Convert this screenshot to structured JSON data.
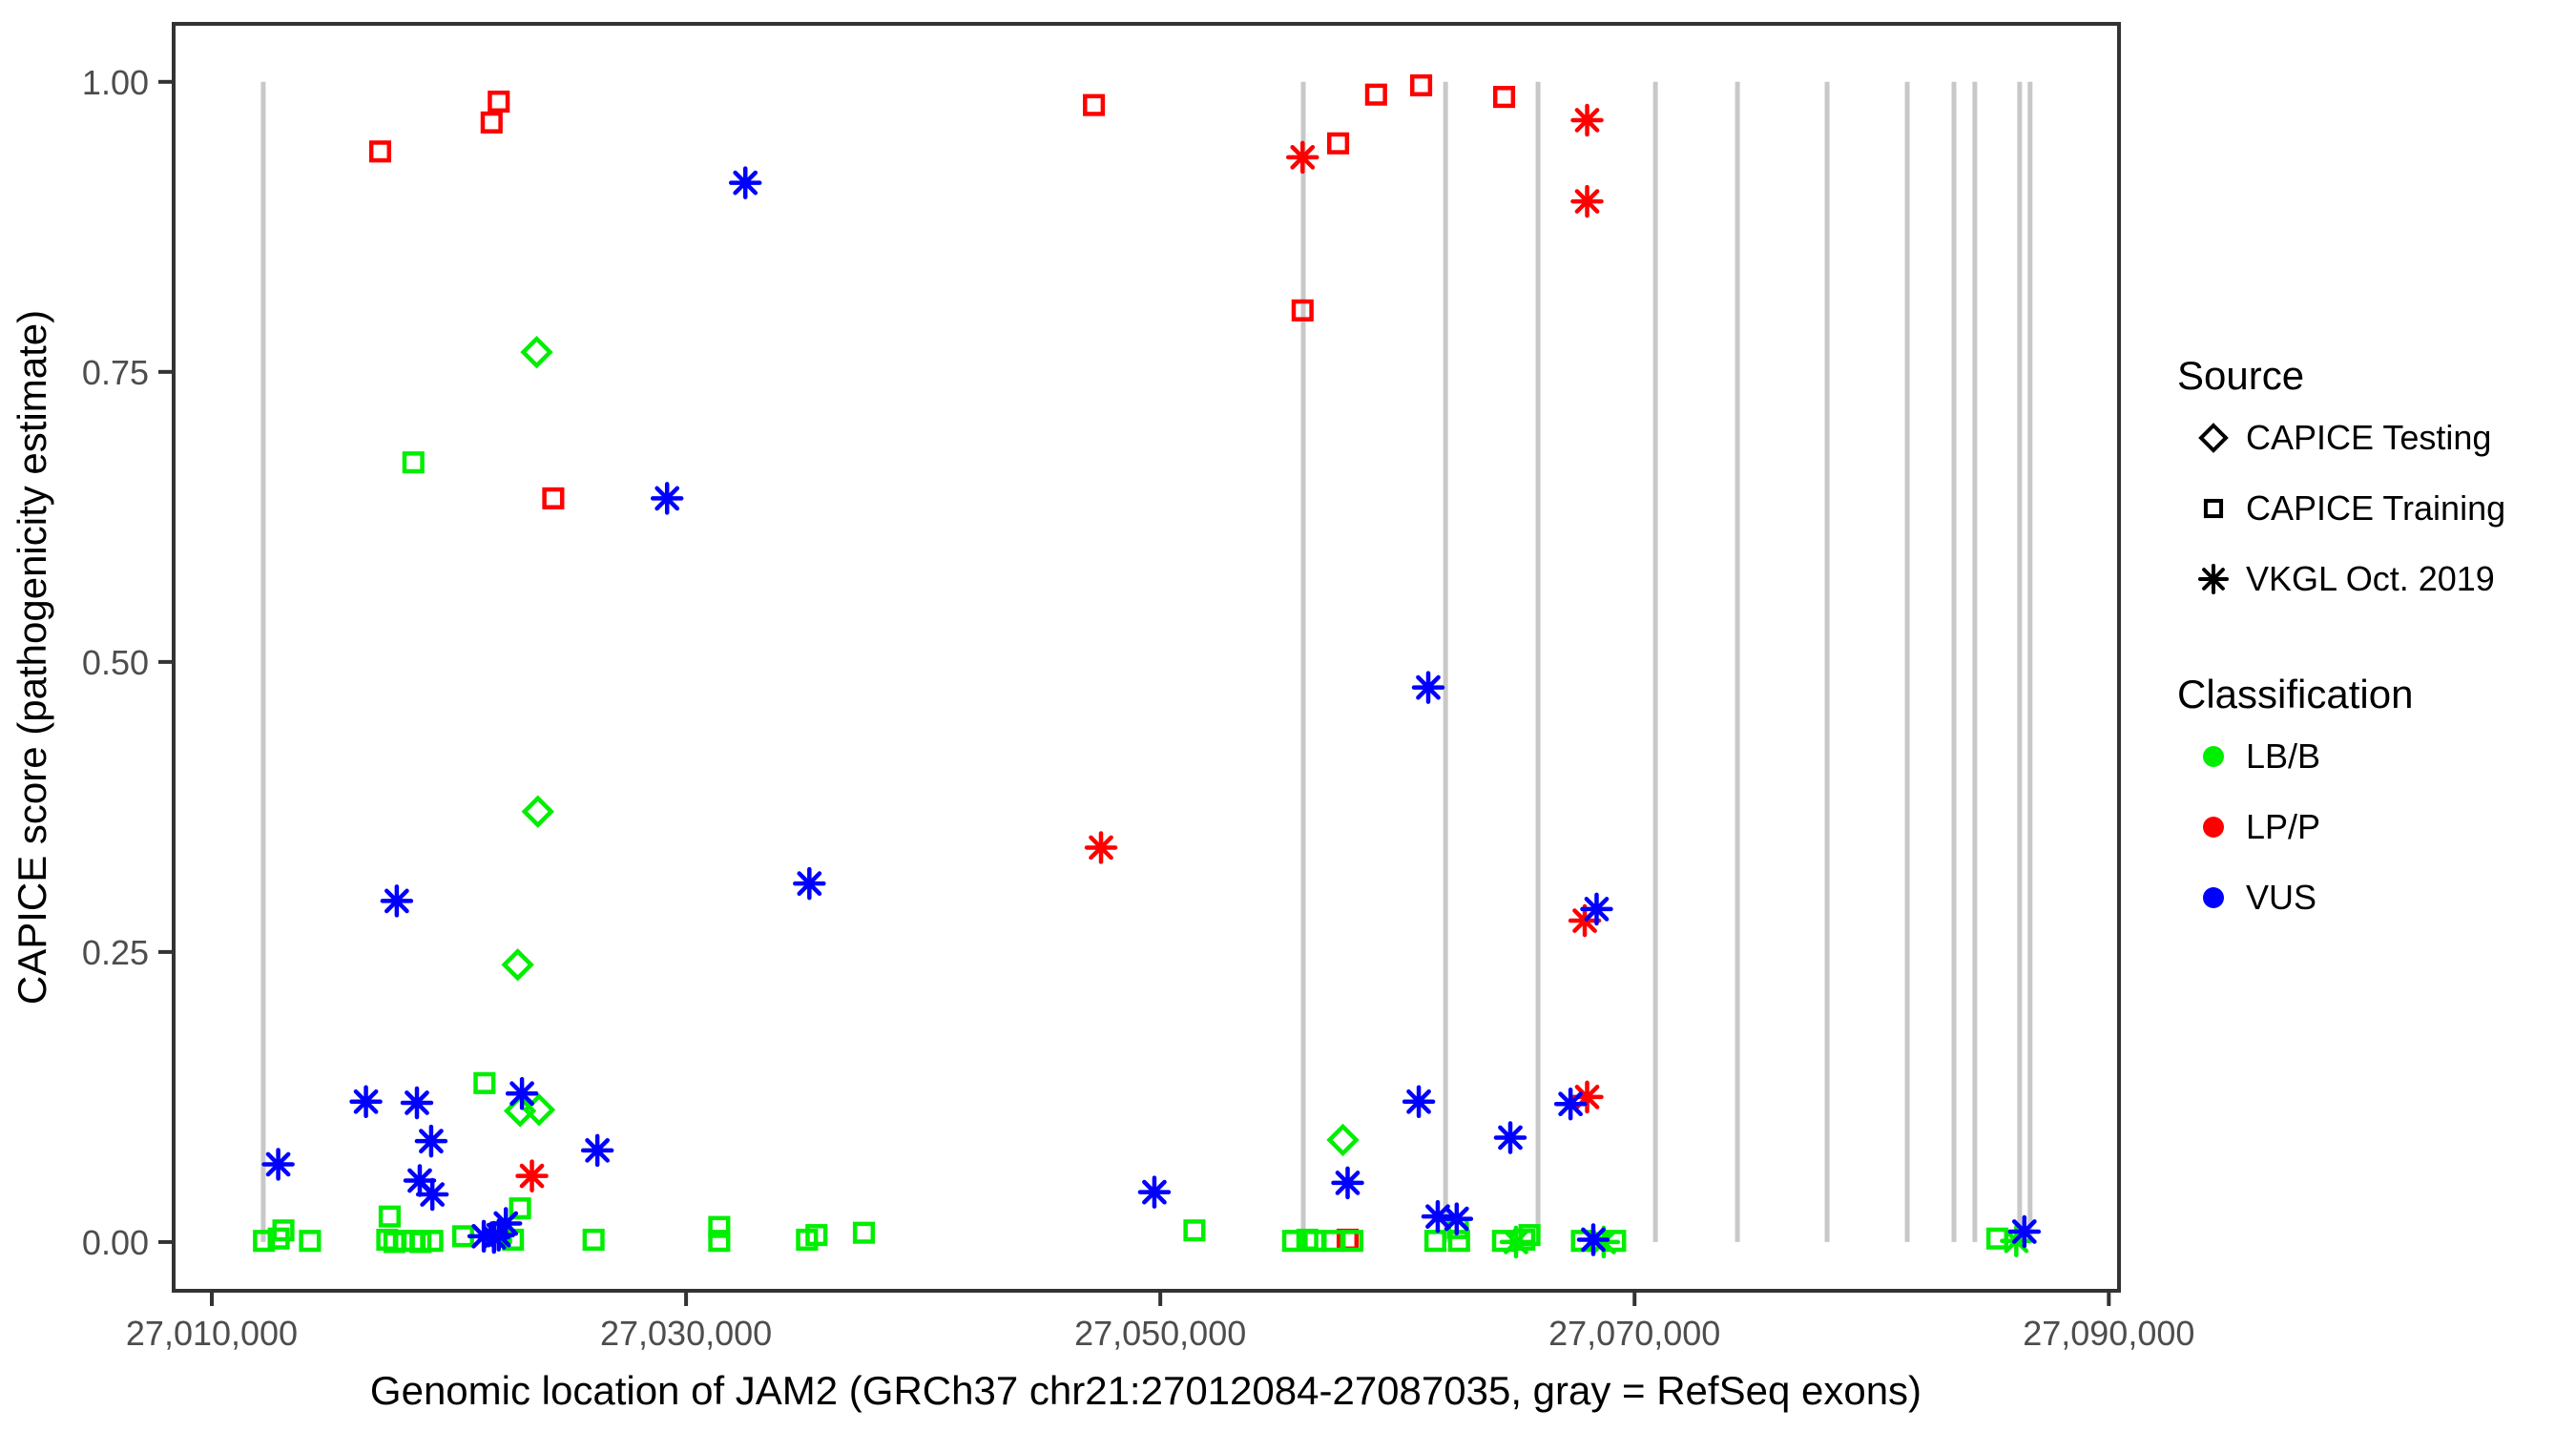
{
  "figure": {
    "x_title": "Genomic location of JAM2 (GRCh37 chr21:27012084-27087035, gray = RefSeq exons)",
    "y_title": "CAPICE score (pathogenicity estimate)"
  },
  "legend": {
    "source": {
      "title": "Source",
      "items": [
        {
          "label": "CAPICE Testing",
          "marker": "diamond"
        },
        {
          "label": "CAPICE Training",
          "marker": "square"
        },
        {
          "label": "VKGL Oct. 2019",
          "marker": "asterisk"
        }
      ]
    },
    "classification": {
      "title": "Classification",
      "items": [
        {
          "label": "LB/B",
          "color": "#00EE00"
        },
        {
          "label": "LP/P",
          "color": "#FF0000"
        },
        {
          "label": "VUS",
          "color": "#0000FF"
        }
      ]
    }
  },
  "chart_data": {
    "type": "scatter",
    "title": "",
    "xlabel": "Genomic location of JAM2 (GRCh37 chr21:27012084-27087035, gray = RefSeq exons)",
    "ylabel": "CAPICE score (pathogenicity estimate)",
    "xlim": [
      27008390,
      27090430
    ],
    "ylim": [
      -0.042,
      1.05
    ],
    "grid": false,
    "legend_position": "right",
    "x_ticks": [
      {
        "value": 27010000,
        "label": "27,010,000"
      },
      {
        "value": 27030000,
        "label": "27,030,000"
      },
      {
        "value": 27050000,
        "label": "27,050,000"
      },
      {
        "value": 27070000,
        "label": "27,070,000"
      },
      {
        "value": 27090000,
        "label": "27,090,000"
      }
    ],
    "y_ticks": [
      {
        "value": 0.0,
        "label": "0.00"
      },
      {
        "value": 0.25,
        "label": "0.25"
      },
      {
        "value": 0.5,
        "label": "0.50"
      },
      {
        "value": 0.75,
        "label": "0.75"
      },
      {
        "value": 1.0,
        "label": "1.00"
      }
    ],
    "marker_shapes": {
      "CAPICE Testing": "diamond",
      "CAPICE Training": "square",
      "VKGL Oct. 2019": "asterisk"
    },
    "class_colors": {
      "LB/B": "#00EE00",
      "LP/P": "#FF0000",
      "VUS": "#0000FF"
    },
    "exon_color": "#C8C8C8",
    "refseq_exons_x": [
      27012170,
      27056030,
      27062030,
      27065930,
      27070880,
      27074340,
      27078120,
      27081500,
      27083470,
      27084350,
      27086240,
      27086680
    ],
    "series": [
      {
        "name": "CAPICE Training - LP/P",
        "source": "CAPICE Training",
        "classification": "LP/P",
        "points": [
          [
            27022100,
            0.983
          ],
          [
            27021800,
            0.965
          ],
          [
            27017100,
            0.94
          ],
          [
            27024400,
            0.641
          ],
          [
            27047200,
            0.98
          ],
          [
            27056000,
            0.803
          ],
          [
            27057500,
            0.947
          ],
          [
            27059100,
            0.989
          ],
          [
            27061000,
            0.997
          ],
          [
            27064500,
            0.987
          ],
          [
            27057900,
            0.002
          ]
        ]
      },
      {
        "name": "VKGL Oct. 2019 - LP/P",
        "source": "VKGL Oct. 2019",
        "classification": "LP/P",
        "points": [
          [
            27056000,
            0.935
          ],
          [
            27068000,
            0.967
          ],
          [
            27068000,
            0.897
          ],
          [
            27047500,
            0.34
          ],
          [
            27023500,
            0.057
          ],
          [
            27067900,
            0.277
          ],
          [
            27068000,
            0.125
          ]
        ]
      },
      {
        "name": "CAPICE Testing - LB/B",
        "source": "CAPICE Testing",
        "classification": "LB/B",
        "points": [
          [
            27023700,
            0.767
          ],
          [
            27023750,
            0.371
          ],
          [
            27022900,
            0.239
          ],
          [
            27023000,
            0.113
          ],
          [
            27023800,
            0.114
          ],
          [
            27057700,
            0.088
          ]
        ]
      },
      {
        "name": "CAPICE Training - LB/B",
        "source": "CAPICE Training",
        "classification": "LB/B",
        "points": [
          [
            27018500,
            0.672
          ],
          [
            27021500,
            0.137
          ],
          [
            27012200,
            0.001
          ],
          [
            27012820,
            0.003
          ],
          [
            27013020,
            0.01
          ],
          [
            27014140,
            0.001
          ],
          [
            27023000,
            0.029
          ],
          [
            27017500,
            0.022
          ],
          [
            27017400,
            0.002
          ],
          [
            27017700,
            0.0
          ],
          [
            27018100,
            0.001
          ],
          [
            27018500,
            0.001
          ],
          [
            27018800,
            0.0
          ],
          [
            27019300,
            0.001
          ],
          [
            27020600,
            0.005
          ],
          [
            27022200,
            0.008
          ],
          [
            27022700,
            0.002
          ],
          [
            27026100,
            0.002
          ],
          [
            27031400,
            0.013
          ],
          [
            27031400,
            0.001
          ],
          [
            27035100,
            0.002
          ],
          [
            27035500,
            0.006
          ],
          [
            27037500,
            0.008
          ],
          [
            27051440,
            0.01
          ],
          [
            27055600,
            0.001
          ],
          [
            27056200,
            0.002
          ],
          [
            27056500,
            0.001
          ],
          [
            27057300,
            0.001
          ],
          [
            27058100,
            0.001
          ],
          [
            27061600,
            0.001
          ],
          [
            27062550,
            0.012
          ],
          [
            27062600,
            0.001
          ],
          [
            27064450,
            0.001
          ],
          [
            27065350,
            0.002
          ],
          [
            27065570,
            0.006
          ],
          [
            27067780,
            0.001
          ],
          [
            27069180,
            0.001
          ],
          [
            27085300,
            0.003
          ]
        ]
      },
      {
        "name": "VKGL Oct. 2019 - LB/B",
        "source": "VKGL Oct. 2019",
        "classification": "LB/B",
        "points": [
          [
            27065000,
            0.0
          ],
          [
            27068700,
            0.0
          ],
          [
            27086100,
            0.001
          ]
        ]
      },
      {
        "name": "VKGL Oct. 2019 - VUS",
        "source": "VKGL Oct. 2019",
        "classification": "VUS",
        "points": [
          [
            27032500,
            0.913
          ],
          [
            27029200,
            0.641
          ],
          [
            27035200,
            0.309
          ],
          [
            27061300,
            0.478
          ],
          [
            27017800,
            0.294
          ],
          [
            27016500,
            0.121
          ],
          [
            27018650,
            0.12
          ],
          [
            27012800,
            0.067
          ],
          [
            27019250,
            0.087
          ],
          [
            27018770,
            0.053
          ],
          [
            27019300,
            0.041
          ],
          [
            27023080,
            0.128
          ],
          [
            27026260,
            0.079
          ],
          [
            27021470,
            0.005
          ],
          [
            27021900,
            0.004
          ],
          [
            27022100,
            0.006
          ],
          [
            27022400,
            0.016
          ],
          [
            27049750,
            0.043
          ],
          [
            27057900,
            0.051
          ],
          [
            27060900,
            0.121
          ],
          [
            27061700,
            0.022
          ],
          [
            27062500,
            0.02
          ],
          [
            27064760,
            0.09
          ],
          [
            27067300,
            0.119
          ],
          [
            27068400,
            0.287
          ],
          [
            27068260,
            0.002
          ],
          [
            27086440,
            0.009
          ]
        ]
      }
    ]
  }
}
